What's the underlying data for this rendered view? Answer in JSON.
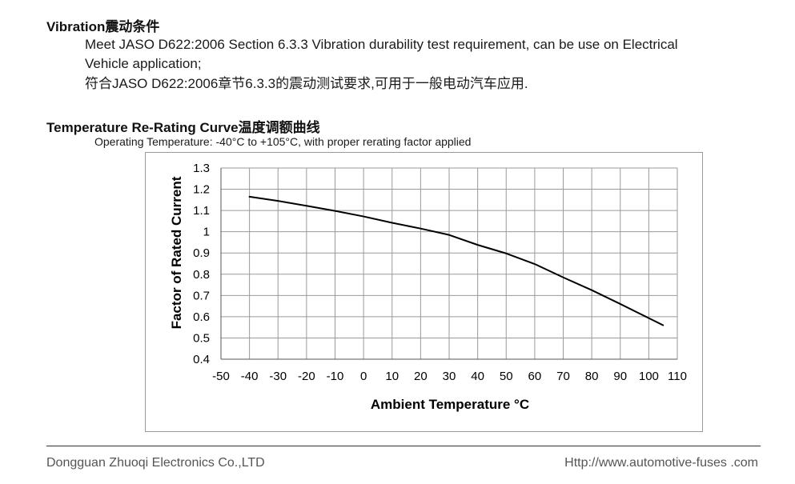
{
  "vibration": {
    "heading": "Vibration震动条件",
    "line1": "Meet JASO D622:2006 Section 6.3.3 Vibration durability test requirement, can be use on Electrical",
    "line2": "Vehicle application;",
    "line3": "符合JASO D622:2006章节6.3.3的震动测试要求,可用于一般电动汽车应用."
  },
  "temperature": {
    "heading": "Temperature Re-Rating Curve温度调额曲线",
    "operating_note": "Operating Temperature:  -40°C to +105°C, with proper rerating factor applied"
  },
  "chart_data": {
    "type": "line",
    "xlabel": "Ambient Temperature °C",
    "ylabel": "Factor of Rated Current",
    "xlim": [
      -50,
      110
    ],
    "ylim": [
      0.4,
      1.3
    ],
    "xticks": [
      -50,
      -40,
      -30,
      -20,
      -10,
      0,
      10,
      20,
      30,
      40,
      50,
      60,
      70,
      80,
      90,
      100,
      110
    ],
    "yticks": [
      0.4,
      0.5,
      0.6,
      0.7,
      0.8,
      0.9,
      1,
      1.1,
      1.2,
      1.3
    ],
    "ytick_labels": [
      "0.4",
      "0.5",
      "0.6",
      "0.7",
      "0.8",
      "0.9",
      "1",
      "1.1",
      "1.2",
      "1.3"
    ],
    "grid": true,
    "legend": "none",
    "series": [
      {
        "x": [
          -40,
          -30,
          -20,
          -10,
          0,
          10,
          20,
          30,
          40,
          50,
          60,
          70,
          80,
          90,
          105
        ],
        "y": [
          1.165,
          1.145,
          1.122,
          1.098,
          1.072,
          1.042,
          1.015,
          0.985,
          0.938,
          0.898,
          0.848,
          0.785,
          0.725,
          0.66,
          0.56
        ],
        "color": "#000000"
      }
    ]
  },
  "footer": {
    "company": "Dongguan Zhuoqi Electronics Co.,LTD",
    "website": "Http://www.automotive-fuses .com"
  }
}
